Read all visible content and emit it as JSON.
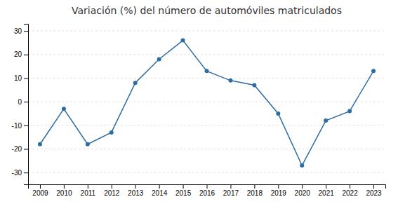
{
  "chart_data": {
    "type": "line",
    "title": "Variación (%) del número de automóviles matriculados",
    "x": [
      2009,
      2010,
      2011,
      2012,
      2013,
      2014,
      2015,
      2016,
      2017,
      2018,
      2019,
      2020,
      2021,
      2022,
      2023
    ],
    "values": [
      -18,
      -3,
      -18,
      -13,
      8,
      18,
      26,
      13,
      9,
      7,
      -5,
      -27,
      -8,
      -4,
      13
    ],
    "color": "#2E6DA4",
    "marker": "circle",
    "xlim": [
      2008.5,
      2023.5
    ],
    "xticks": [
      2009,
      2010,
      2011,
      2012,
      2013,
      2014,
      2015,
      2016,
      2017,
      2018,
      2019,
      2020,
      2021,
      2022,
      2023
    ],
    "ylim": [
      -35,
      33
    ],
    "yticks": [
      -30,
      -20,
      -10,
      0,
      10,
      20,
      30
    ],
    "grid": true
  }
}
